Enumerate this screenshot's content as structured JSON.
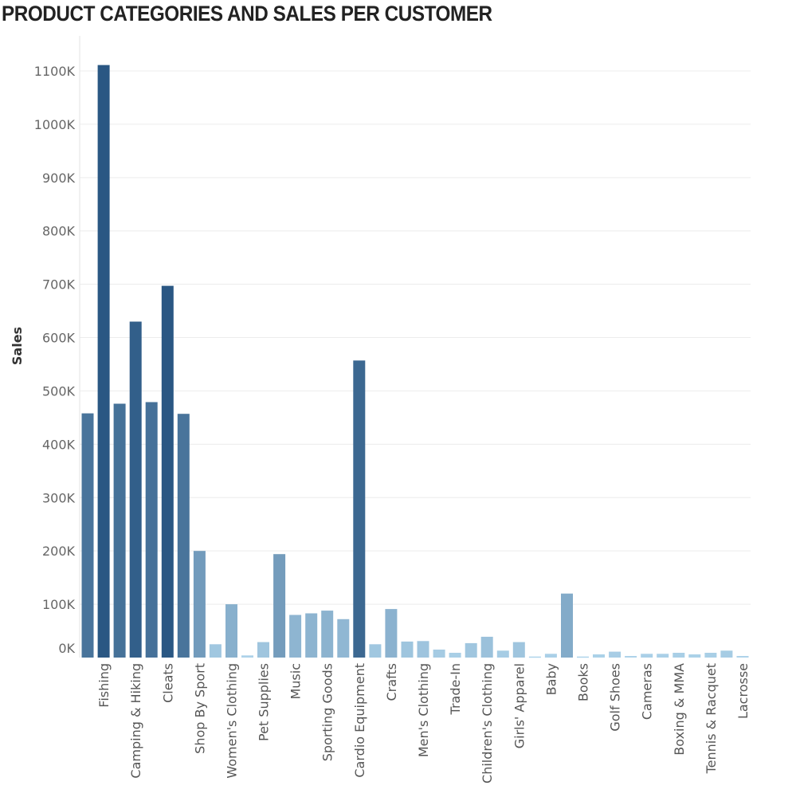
{
  "chart_data": {
    "type": "bar",
    "title": "PRODUCT CATEGORIES AND SALES PER CUSTOMER",
    "xlabel": "",
    "ylabel": "Sales",
    "ylim": [
      0,
      1100000
    ],
    "yticks": [
      0,
      100000,
      200000,
      300000,
      400000,
      500000,
      600000,
      700000,
      800000,
      900000,
      1000000,
      1100000
    ],
    "ytick_labels": [
      "0K",
      "100K",
      "200K",
      "300K",
      "400K",
      "500K",
      "600K",
      "700K",
      "800K",
      "900K",
      "1000K",
      "1100K"
    ],
    "grid": true,
    "color_scale": [
      "#b3d8ee",
      "#2a5783"
    ],
    "categories": [
      "",
      "Fishing",
      "",
      "Camping & Hiking",
      "",
      "Cleats",
      "",
      "Shop By Sport",
      "",
      "Women's Clothing",
      "",
      "Pet Supplies",
      "",
      "Music",
      "",
      "Sporting Goods",
      "",
      "Cardio Equipment",
      "",
      "Crafts",
      "",
      "Men's Clothing",
      "",
      "Trade-In",
      "",
      "Children's Clothing",
      "",
      "Girls' Apparel",
      "",
      "Baby",
      "",
      "Books",
      "",
      "Golf Shoes",
      "",
      "Cameras",
      "",
      "Boxing & MMA",
      "",
      "Tennis & Racquet",
      "",
      "Lacrosse"
    ],
    "values": [
      458000,
      1111000,
      476000,
      630000,
      479000,
      697000,
      457000,
      200000,
      25000,
      100000,
      4000,
      29000,
      194000,
      80000,
      83000,
      88000,
      72000,
      557000,
      25000,
      91000,
      30000,
      31000,
      15000,
      9000,
      27000,
      39000,
      13000,
      29000,
      2000,
      7000,
      120000,
      2000,
      6000,
      11000,
      3000,
      7000,
      7000,
      9000,
      6000,
      9000,
      13000,
      3000
    ]
  }
}
